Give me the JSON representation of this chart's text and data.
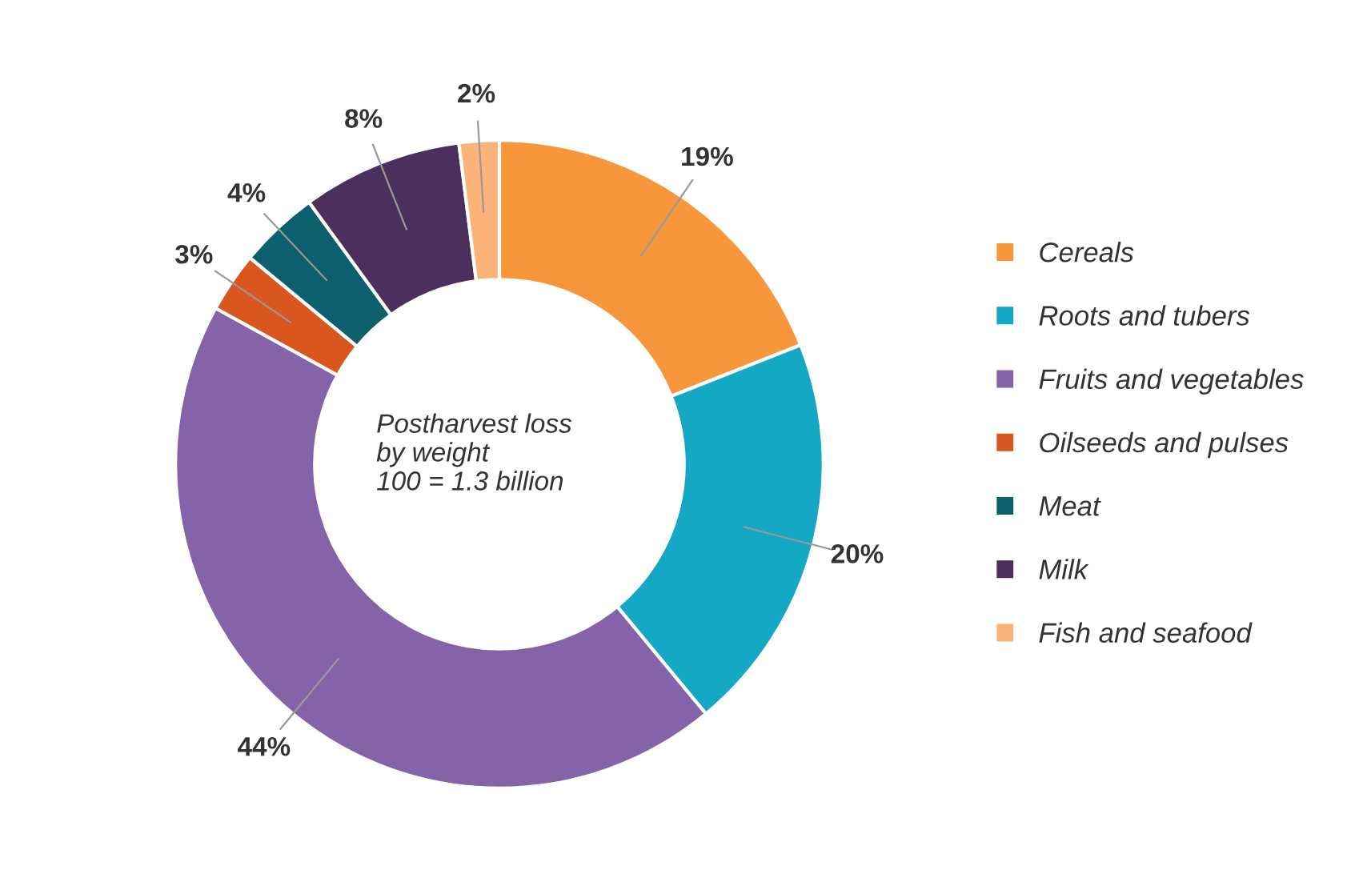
{
  "chart_data": {
    "type": "donut",
    "categories": [
      "Cereals",
      "Roots and tubers",
      "Fruits and vegetables",
      "Oilseeds and pulses",
      "Meat",
      "Milk",
      "Fish and seafood"
    ],
    "values": [
      19,
      20,
      44,
      3,
      4,
      8,
      2
    ],
    "colors": [
      "#f7963b",
      "#15a8c4",
      "#8563a8",
      "#d9561f",
      "#0e5f6e",
      "#4b2f5c",
      "#fbb37a"
    ],
    "value_labels": [
      "19%",
      "20%",
      "44%",
      "3%",
      "4%",
      "8%",
      "2%"
    ],
    "annotations": [
      "Postharvest loss\nby weight\n100 = 1.3 billion"
    ],
    "legend": "right"
  }
}
